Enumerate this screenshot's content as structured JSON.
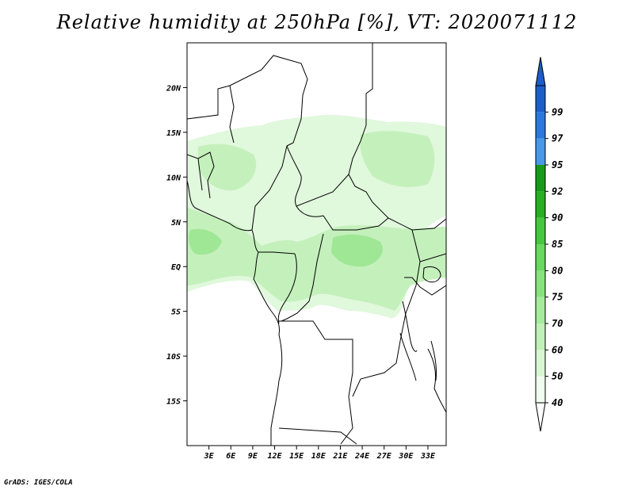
{
  "title": "Relative humidity at 250hPa [%], VT: 2020071112",
  "credit": "GrADS: IGES/COLA",
  "map": {
    "lon_range": [
      0,
      35.5
    ],
    "lat_range": [
      -20,
      25
    ],
    "lat_ticks": [
      {
        "value": 20,
        "label": "20N"
      },
      {
        "value": 15,
        "label": "15N"
      },
      {
        "value": 10,
        "label": "10N"
      },
      {
        "value": 5,
        "label": "5N"
      },
      {
        "value": 0,
        "label": "EQ"
      },
      {
        "value": -5,
        "label": "5S"
      },
      {
        "value": -10,
        "label": "10S"
      },
      {
        "value": -15,
        "label": "15S"
      }
    ],
    "lon_ticks": [
      {
        "value": 3,
        "label": "3E"
      },
      {
        "value": 6,
        "label": "6E"
      },
      {
        "value": 9,
        "label": "9E"
      },
      {
        "value": 12,
        "label": "12E"
      },
      {
        "value": 15,
        "label": "15E"
      },
      {
        "value": 18,
        "label": "18E"
      },
      {
        "value": 21,
        "label": "21E"
      },
      {
        "value": 24,
        "label": "24E"
      },
      {
        "value": 27,
        "label": "27E"
      },
      {
        "value": 30,
        "label": "30E"
      },
      {
        "value": 33,
        "label": "33E"
      }
    ]
  },
  "colorbar": {
    "levels": [
      {
        "label": "40",
        "color": "#f0fcee"
      },
      {
        "label": "50",
        "color": "#d8f6d2"
      },
      {
        "label": "60",
        "color": "#c0f0b8"
      },
      {
        "label": "70",
        "color": "#a6ea9c"
      },
      {
        "label": "75",
        "color": "#86e27c"
      },
      {
        "label": "80",
        "color": "#68d85e"
      },
      {
        "label": "85",
        "color": "#46c63e"
      },
      {
        "label": "90",
        "color": "#2aae24"
      },
      {
        "label": "92",
        "color": "#189a18"
      },
      {
        "label": "95",
        "color": "#4a98e8"
      },
      {
        "label": "97",
        "color": "#2c78dc"
      },
      {
        "label": "99",
        "color": "#1c5ec8"
      }
    ],
    "top_arrow_color": "#1c5ec8",
    "bottom_arrow_color": "#ffffff"
  },
  "colors": {
    "humid_light": "#e0f8dc",
    "humid_mid": "#c4f0bc",
    "humid_high": "#9fe795",
    "border": "#000000"
  }
}
